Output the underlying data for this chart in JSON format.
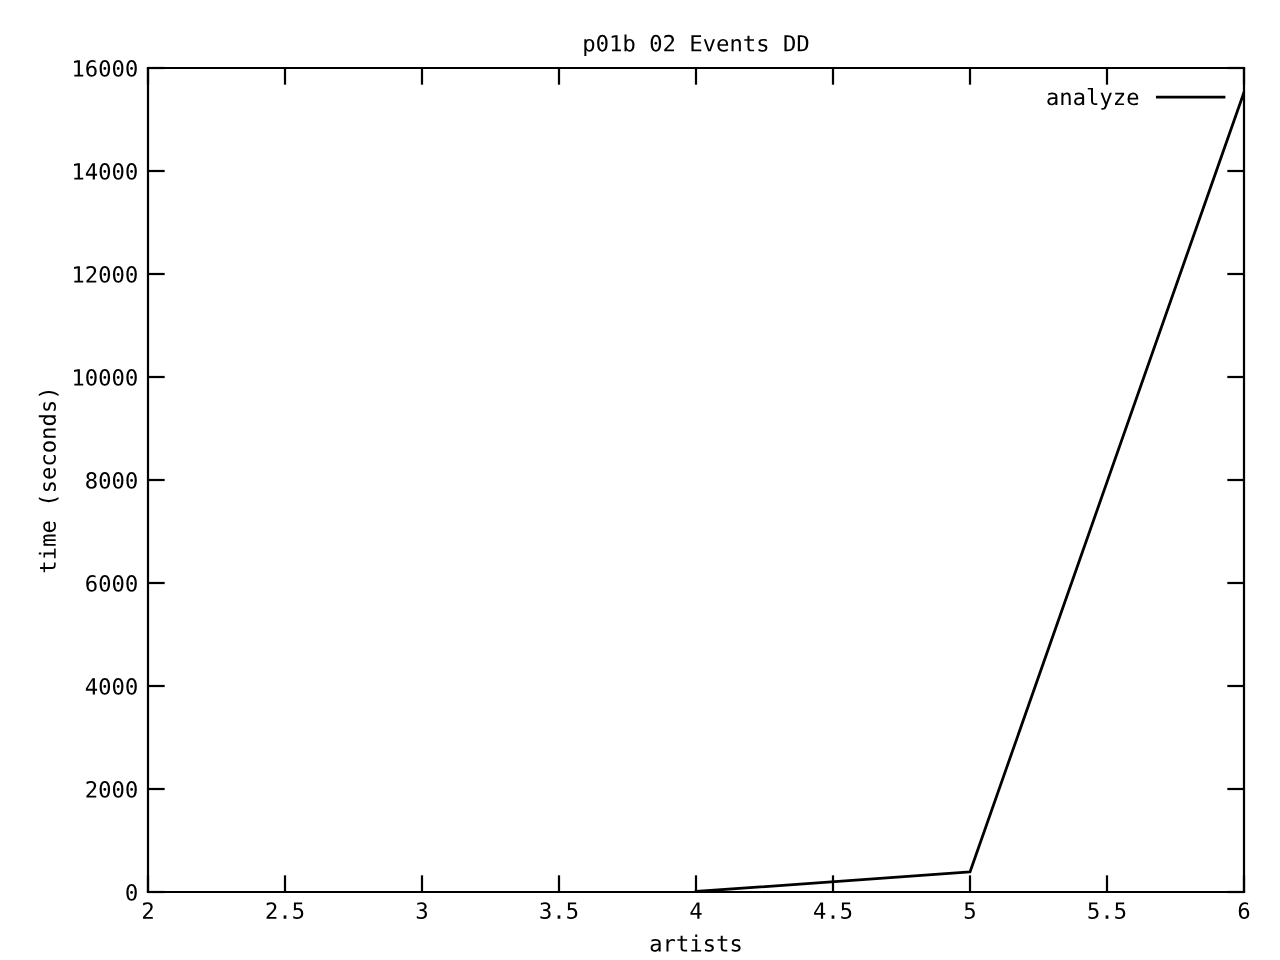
{
  "chart_data": {
    "type": "line",
    "title": "p01b 02 Events DD",
    "xlabel": "artists",
    "ylabel": "time (seconds)",
    "series": [
      {
        "name": "analyze",
        "color": "#000000",
        "x": [
          4,
          5,
          6
        ],
        "values": [
          10,
          390,
          15530
        ]
      }
    ],
    "xlim": [
      2,
      6
    ],
    "xticks": [
      2,
      2.5,
      3,
      3.5,
      4,
      4.5,
      5,
      5.5,
      6
    ],
    "ylim": [
      0,
      16000
    ],
    "yticks": [
      0,
      2000,
      4000,
      6000,
      8000,
      10000,
      12000,
      14000,
      16000
    ],
    "grid": false,
    "legend": "top right",
    "marker": "none",
    "line_style": "solid"
  }
}
